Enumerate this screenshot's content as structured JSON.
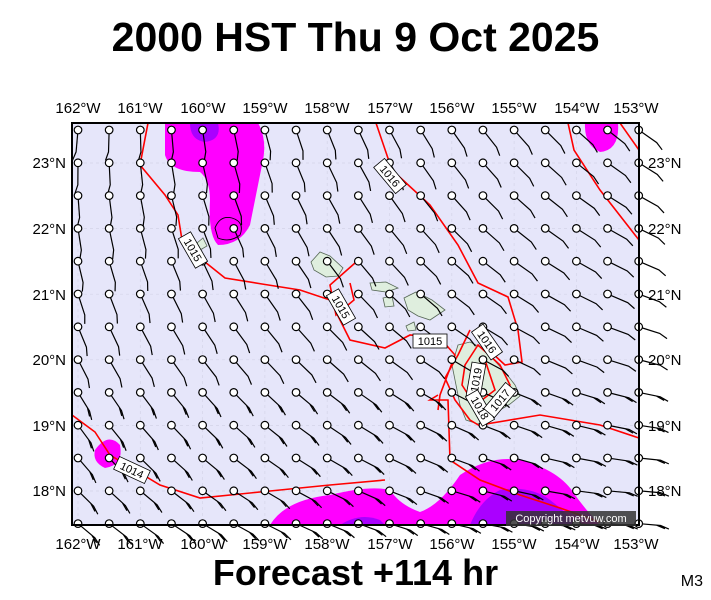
{
  "title": "2000 HST Thu 9 Oct 2025",
  "footer": "Forecast +114 hr",
  "model_label": "M3",
  "copyright": "Copyright metvuw.com",
  "map": {
    "lon_labels": [
      "162°W",
      "161°W",
      "160°W",
      "159°W",
      "158°W",
      "157°W",
      "156°W",
      "155°W",
      "154°W",
      "153°W"
    ],
    "lat_labels": [
      "23°N",
      "22°N",
      "21°N",
      "20°N",
      "19°N",
      "18°N"
    ],
    "isobar_labels": [
      "1015",
      "1015",
      "1015",
      "1016",
      "1016",
      "1019",
      "1018",
      "1017",
      "1014"
    ],
    "colors": {
      "ocean": "#e6e6fa",
      "isobar": "#ff0000",
      "rain_light": "#ff00ff",
      "rain_heavy": "#aa00ff",
      "land": "#dfeede"
    }
  }
}
